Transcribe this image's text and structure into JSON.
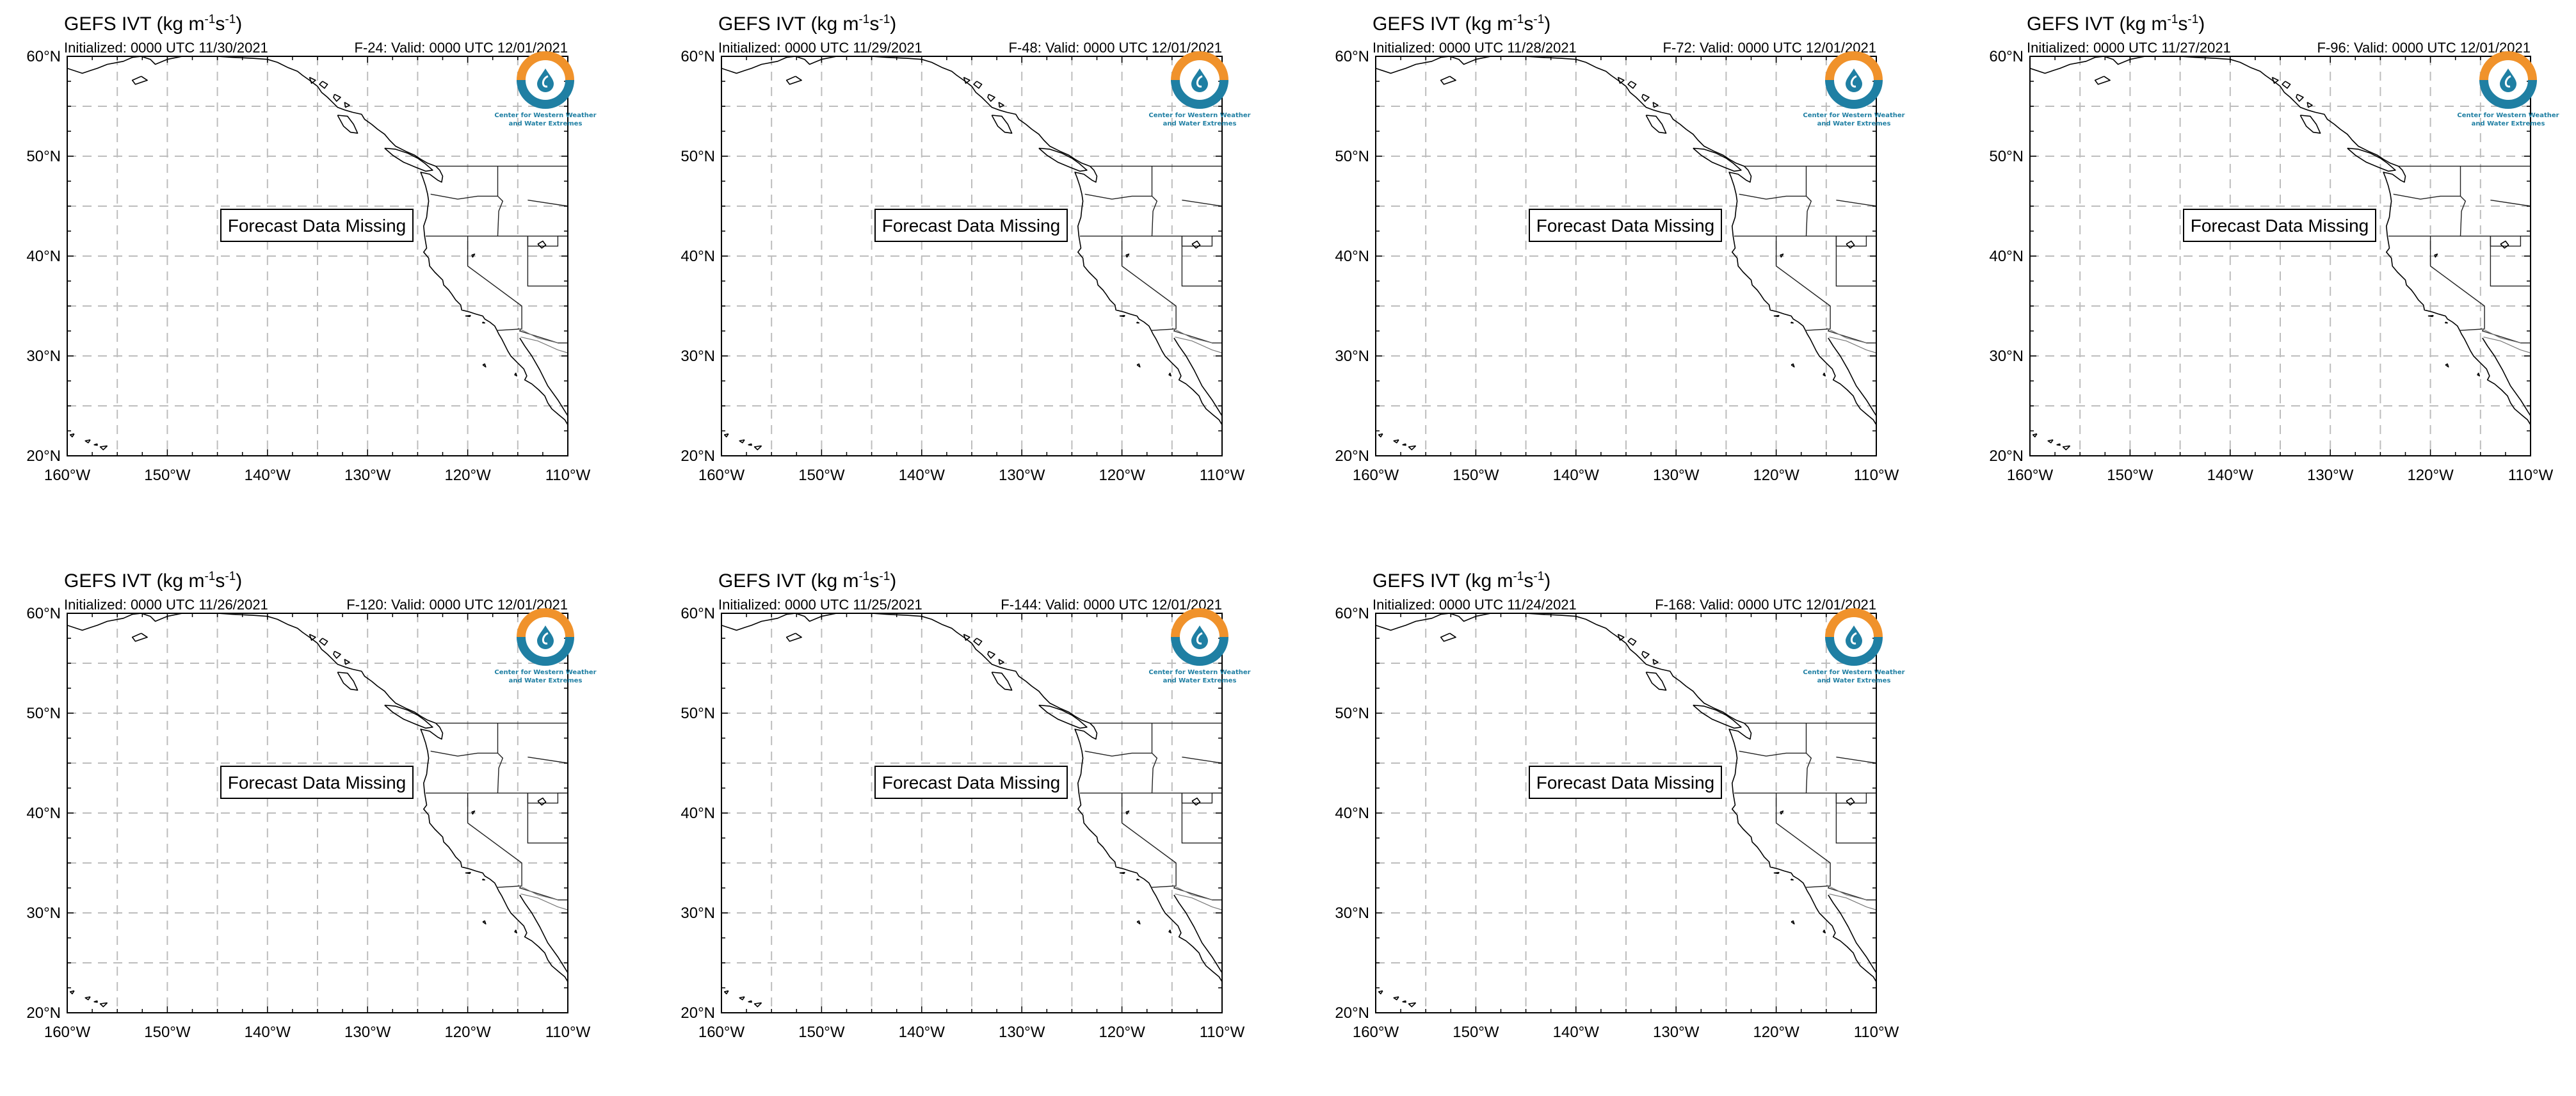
{
  "panels": [
    {
      "title_prefix": "GEFS IVT (kg m",
      "title_sup1": "-1",
      "title_mid": "s",
      "title_sup2": "-1",
      "title_suffix": ")",
      "initialized": "Initialized: 0000 UTC 11/30/2021",
      "valid": "F-24: Valid: 0000 UTC 12/01/2021",
      "message": "Forecast Data Missing"
    },
    {
      "title_prefix": "GEFS IVT (kg m",
      "title_sup1": "-1",
      "title_mid": "s",
      "title_sup2": "-1",
      "title_suffix": ")",
      "initialized": "Initialized: 0000 UTC 11/29/2021",
      "valid": "F-48: Valid: 0000 UTC 12/01/2021",
      "message": "Forecast Data Missing"
    },
    {
      "title_prefix": "GEFS IVT (kg m",
      "title_sup1": "-1",
      "title_mid": "s",
      "title_sup2": "-1",
      "title_suffix": ")",
      "initialized": "Initialized: 0000 UTC 11/28/2021",
      "valid": "F-72: Valid: 0000 UTC 12/01/2021",
      "message": "Forecast Data Missing"
    },
    {
      "title_prefix": "GEFS IVT (kg m",
      "title_sup1": "-1",
      "title_mid": "s",
      "title_sup2": "-1",
      "title_suffix": ")",
      "initialized": "Initialized: 0000 UTC 11/27/2021",
      "valid": "F-96: Valid: 0000 UTC 12/01/2021",
      "message": "Forecast Data Missing"
    },
    {
      "title_prefix": "GEFS IVT (kg m",
      "title_sup1": "-1",
      "title_mid": "s",
      "title_sup2": "-1",
      "title_suffix": ")",
      "initialized": "Initialized: 0000 UTC 11/26/2021",
      "valid": "F-120: Valid: 0000 UTC 12/01/2021",
      "message": "Forecast Data Missing"
    },
    {
      "title_prefix": "GEFS IVT (kg m",
      "title_sup1": "-1",
      "title_mid": "s",
      "title_sup2": "-1",
      "title_suffix": ")",
      "initialized": "Initialized: 0000 UTC 11/25/2021",
      "valid": "F-144: Valid: 0000 UTC 12/01/2021",
      "message": "Forecast Data Missing"
    },
    {
      "title_prefix": "GEFS IVT (kg m",
      "title_sup1": "-1",
      "title_mid": "s",
      "title_sup2": "-1",
      "title_suffix": ")",
      "initialized": "Initialized: 0000 UTC 11/24/2021",
      "valid": "F-168: Valid: 0000 UTC 12/01/2021",
      "message": "Forecast Data Missing"
    }
  ],
  "axes": {
    "lat_labels": [
      "60°N",
      "50°N",
      "40°N",
      "30°N",
      "20°N"
    ],
    "lon_labels": [
      "160°W",
      "150°W",
      "140°W",
      "130°W",
      "120°W",
      "110°W"
    ],
    "lat_range": [
      20,
      60
    ],
    "lon_range": [
      -160,
      -110
    ]
  },
  "logo": {
    "line1": "Center for Western Weather",
    "line2": "and Water Extremes",
    "colors": {
      "orange": "#f0922b",
      "blue": "#1f7fa3"
    }
  }
}
